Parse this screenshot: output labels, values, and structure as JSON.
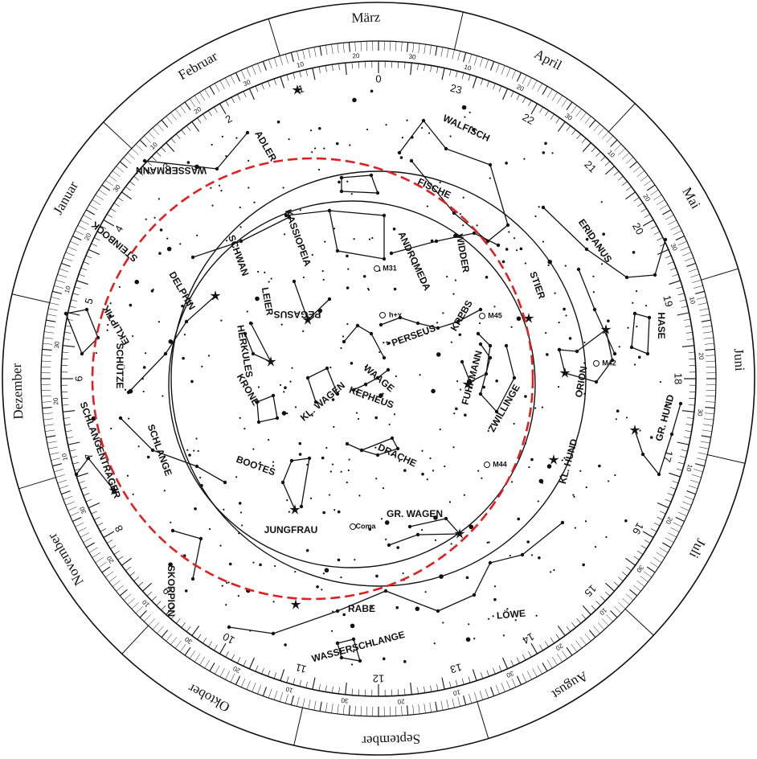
{
  "months": [
    {
      "label": "März",
      "angle": -92
    },
    {
      "label": "April",
      "angle": -62
    },
    {
      "label": "Mai",
      "angle": -30
    },
    {
      "label": "Juni",
      "angle": -3
    },
    {
      "label": "Juli",
      "angle": 28
    },
    {
      "label": "August",
      "angle": 58
    },
    {
      "label": "September",
      "angle": 88
    },
    {
      "label": "Oktober",
      "angle": 118
    },
    {
      "label": "November",
      "angle": 150
    },
    {
      "label": "Dezember",
      "angle": 178
    },
    {
      "label": "Januar",
      "angle": -150
    },
    {
      "label": "Februar",
      "angle": -120
    }
  ],
  "hours": [
    "0",
    "1",
    "2",
    "3",
    "4",
    "5",
    "6",
    "7",
    "8",
    "9",
    "10",
    "11",
    "12",
    "13",
    "14",
    "15",
    "16",
    "17",
    "18",
    "19",
    "20",
    "21",
    "22",
    "23"
  ],
  "deg_labels": [
    "10",
    "20",
    "30"
  ],
  "constellations": [
    {
      "name": "WALFISCH",
      "angle": 25
    },
    {
      "name": "FISCHE",
      "angle": 25
    },
    {
      "name": "WIDDER",
      "angle": 80
    },
    {
      "name": "ERIDANUS",
      "angle": 55
    },
    {
      "name": "STIER",
      "angle": 70
    },
    {
      "name": "HASE",
      "angle": 90
    },
    {
      "name": "ORION",
      "angle": -80
    },
    {
      "name": "GR. HUND",
      "angle": -75
    },
    {
      "name": "KL. HUND",
      "angle": -75
    },
    {
      "name": "ZWILLINGE",
      "angle": -60
    },
    {
      "name": "FUHRMANN",
      "angle": -75
    },
    {
      "name": "KREBS",
      "angle": -60
    },
    {
      "name": "PERSEUS",
      "angle": -20
    },
    {
      "name": "KASSIOPEIA",
      "angle": 70
    },
    {
      "name": "ANDROMEDA",
      "angle": 65
    },
    {
      "name": "PEGASUS",
      "angle": 180
    },
    {
      "name": "KEPHEUS",
      "angle": 20
    },
    {
      "name": "KL. WAGEN",
      "angle": -40
    },
    {
      "name": "DRACHE",
      "angle": 25
    },
    {
      "name": "GR. WAGEN",
      "angle": 0
    },
    {
      "name": "LÖWE",
      "angle": -5
    },
    {
      "name": "WASSERSCHLANGE",
      "angle": -15
    },
    {
      "name": "RABE",
      "angle": 0
    },
    {
      "name": "JUNGFRAU",
      "angle": 0
    },
    {
      "name": "BOOTES",
      "angle": 20
    },
    {
      "name": "KRONE",
      "angle": 60
    },
    {
      "name": "HERKULES",
      "angle": 80
    },
    {
      "name": "LEIER",
      "angle": 80
    },
    {
      "name": "SCHWAN",
      "angle": 70
    },
    {
      "name": "DELPHIN",
      "angle": 60
    },
    {
      "name": "ADLER",
      "angle": 60
    },
    {
      "name": "WASSERMANN",
      "angle": 180
    },
    {
      "name": "STEINBOCK",
      "angle": -140
    },
    {
      "name": "EKLIPTIK",
      "angle": -120
    },
    {
      "name": "SCHÜTZE",
      "angle": 90
    },
    {
      "name": "SCHLANGE",
      "angle": 70
    },
    {
      "name": "SCHLANGENTRÄGER",
      "angle": 70
    },
    {
      "name": "SKORPION",
      "angle": 90
    },
    {
      "name": "WAAGE",
      "angle": 40
    }
  ],
  "objects": [
    {
      "name": "M31"
    },
    {
      "name": "h+χ"
    },
    {
      "name": "M45"
    },
    {
      "name": "M42"
    },
    {
      "name": "M44"
    },
    {
      "name": "Coma"
    }
  ]
}
